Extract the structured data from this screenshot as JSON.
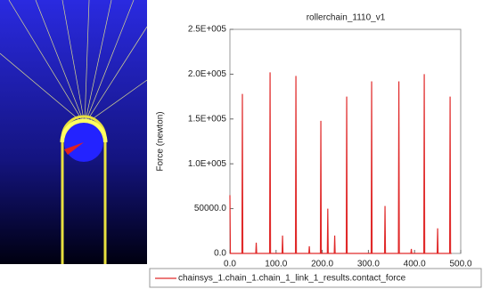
{
  "chart_data": {
    "type": "line",
    "title": "rollerchain_1110_v1",
    "y_label": "Force (newton)",
    "x": [
      0,
      1,
      26,
      27,
      28,
      56,
      57,
      58,
      86,
      87,
      88,
      113,
      114,
      115,
      142,
      143,
      144,
      171,
      172,
      173,
      196,
      197,
      198,
      211,
      212,
      213,
      226,
      227,
      228,
      252,
      253,
      254,
      306,
      307,
      308,
      335,
      336,
      337,
      365,
      366,
      367,
      392,
      393,
      394,
      420,
      421,
      422,
      449,
      450,
      451,
      476,
      477,
      478,
      480
    ],
    "series": [
      {
        "name": "chainsys_1.chain_1.chain_1_link_1_results.contact_force",
        "color": "#e02a2a",
        "values": [
          65000,
          0,
          0,
          178000,
          0,
          0,
          12000,
          0,
          0,
          202000,
          0,
          0,
          20000,
          0,
          0,
          198000,
          0,
          0,
          8000,
          0,
          0,
          148000,
          0,
          0,
          50000,
          0,
          0,
          20000,
          0,
          0,
          175000,
          0,
          0,
          192000,
          0,
          0,
          53000,
          0,
          0,
          192000,
          0,
          0,
          5000,
          0,
          0,
          200000,
          0,
          0,
          28000,
          0,
          0,
          175000,
          0,
          0
        ]
      }
    ],
    "xlim": [
      0,
      500
    ],
    "ylim": [
      0,
      250000
    ],
    "xticks": [
      {
        "value": 0,
        "label": "0.0"
      },
      {
        "value": 100,
        "label": "100.0"
      },
      {
        "value": 200,
        "label": "200.0"
      },
      {
        "value": 300,
        "label": "300.0"
      },
      {
        "value": 400,
        "label": "400.0"
      },
      {
        "value": 500,
        "label": "500.0"
      }
    ],
    "yticks": [
      {
        "value": 0,
        "label": "0.0"
      },
      {
        "value": 50000,
        "label": "50000.0"
      },
      {
        "value": 100000,
        "label": "1.0E+005"
      },
      {
        "value": 150000,
        "label": "1.5E+005"
      },
      {
        "value": 200000,
        "label": "2.0E+005"
      },
      {
        "value": 250000,
        "label": "2.5E+005"
      }
    ]
  }
}
